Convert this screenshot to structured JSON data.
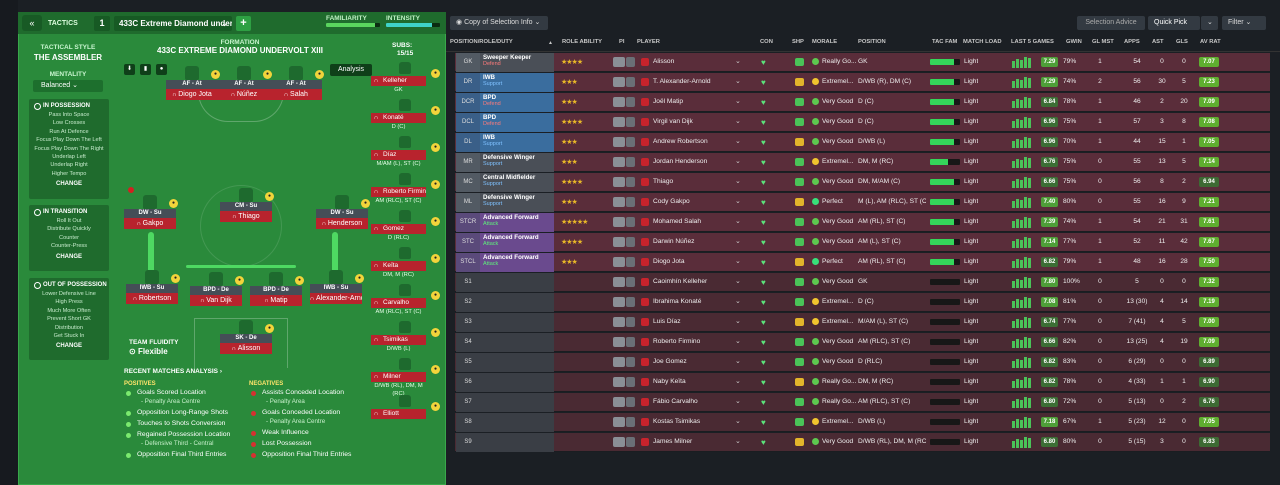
{
  "topbar": {
    "tactics_label": "TACTICS",
    "slot_number": "1",
    "tactic_name": "433C Extreme Diamond under...",
    "familiarity_label": "FAMILIARITY",
    "intensity_label": "INTENSITY",
    "familiarity_level": 0.9,
    "intensity_level": 0.85,
    "view_select": "Copy of Selection Info",
    "selection_advice": "Selection Advice",
    "quick_pick": "Quick Pick",
    "filter": "Filter"
  },
  "left": {
    "tactical_style_label": "TACTICAL STYLE",
    "tactical_style": "THE ASSEMBLER",
    "mentality_label": "MENTALITY",
    "mentality": "Balanced",
    "in_possession": {
      "title": "IN POSSESSION",
      "items": [
        "Pass Into Space",
        "Low Crosses",
        "Run At Defence",
        "Focus Play Down The Left",
        "Focus Play Down The Right",
        "Underlap Left",
        "Underlap Right",
        "Higher Tempo"
      ],
      "change": "CHANGE"
    },
    "in_transition": {
      "title": "IN TRANSITION",
      "items": [
        "Roll It Out",
        "Distribute Quickly",
        "Counter",
        "Counter-Press"
      ],
      "change": "CHANGE"
    },
    "out_possession": {
      "title": "OUT OF POSSESSION",
      "items": [
        "Lower Defensive Line",
        "High Press",
        "Much More Often",
        "Prevent Short GK",
        "Distribution",
        "Get Stuck In"
      ],
      "change": "CHANGE"
    },
    "team_fluidity_label": "TEAM FLUIDITY",
    "team_fluidity": "Flexible"
  },
  "formation": {
    "label": "FORMATION",
    "name": "433C EXTREME DIAMOND UNDERVOLT XIII",
    "analysis_btn": "Analysis",
    "subs_label": "SUBS:",
    "subs_value": "15/15",
    "players": [
      {
        "pos": "AF - At",
        "name": "Diogo Jota"
      },
      {
        "pos": "AF - At",
        "name": "Núñez"
      },
      {
        "pos": "AF - At",
        "name": "Salah"
      },
      {
        "pos": "DW - Su",
        "name": "Gakpo"
      },
      {
        "pos": "CM - Su",
        "name": "Thiago"
      },
      {
        "pos": "DW - Su",
        "name": "Henderson"
      },
      {
        "pos": "IWB - Su",
        "name": "Robertson"
      },
      {
        "pos": "BPD - De",
        "name": "Van Dijk"
      },
      {
        "pos": "BPD - De",
        "name": "Matip"
      },
      {
        "pos": "IWB - Su",
        "name": "Alexander-Arnold"
      },
      {
        "pos": "SK - De",
        "name": "Alisson"
      }
    ],
    "subs": [
      {
        "name": "Kelleher",
        "pos": "GK"
      },
      {
        "name": "Konaté",
        "pos": "D (C)"
      },
      {
        "name": "Díaz",
        "pos": "M/AM (L), ST (C)"
      },
      {
        "name": "Roberto Firmino",
        "pos": "AM (RLC), ST (C)"
      },
      {
        "name": "Gomez",
        "pos": "D (RLC)"
      },
      {
        "name": "Keïta",
        "pos": "DM, M (RC)"
      },
      {
        "name": "Carvalho",
        "pos": "AM (RLC), ST (C)"
      },
      {
        "name": "Tsimikas",
        "pos": "D/WB (L)"
      },
      {
        "name": "Milner",
        "pos": "D/WB (RL), DM, M (RC)"
      },
      {
        "name": "Elliott",
        "pos": ""
      }
    ]
  },
  "analysis": {
    "title": "RECENT MATCHES ANALYSIS",
    "positives_label": "POSITIVES",
    "negatives_label": "NEGATIVES",
    "positives": [
      {
        "t": "Goals Scored Location",
        "s": "- Penalty Area Centre"
      },
      {
        "t": "Opposition Long-Range Shots",
        "s": ""
      },
      {
        "t": "Touches to Shots Conversion",
        "s": ""
      },
      {
        "t": "Regained Possession Location",
        "s": "- Defensive Third - Central"
      },
      {
        "t": "Opposition Final Third Entries",
        "s": ""
      }
    ],
    "negatives": [
      {
        "t": "Assists Conceded Location",
        "s": "- Penalty Area"
      },
      {
        "t": "Goals Conceded Location",
        "s": "- Penalty Area Centre"
      },
      {
        "t": "Weak Influence",
        "s": ""
      },
      {
        "t": "Lost Possession",
        "s": ""
      },
      {
        "t": "Opposition Final Third Entries",
        "s": ""
      }
    ]
  },
  "table": {
    "headers": [
      "POSITION/ROLE/DUTY",
      "ROLE ABILITY",
      "PI",
      "PLAYER",
      "CON",
      "SHP",
      "MORALE",
      "POSITION",
      "TAC FAM",
      "MATCH LOAD",
      "LAST 5 GAMES",
      "GWIN",
      "GL MST",
      "APPS",
      "AST",
      "GLS",
      "AV RAT"
    ],
    "rows": [
      {
        "code": "GK",
        "role": "Sweeper Keeper",
        "duty": "Defend",
        "stars": "★★★★",
        "player": "Alisson",
        "morale": "Really Go...",
        "position": "GK",
        "fam": 0.8,
        "load": "Light",
        "rat": "7.29",
        "gwin": "79%",
        "glmst": "1",
        "apps": "54",
        "ast": "0",
        "gls": "0",
        "av": "7.07"
      },
      {
        "code": "DR",
        "role": "IWB",
        "duty": "Support",
        "stars": "★★★",
        "player": "T. Alexander-Arnold",
        "morale": "Extremel...",
        "position": "D/WB (R), DM (C)",
        "fam": 0.8,
        "load": "Light",
        "rat": "7.29",
        "gwin": "74%",
        "glmst": "2",
        "apps": "56",
        "ast": "30",
        "gls": "5",
        "av": "7.23"
      },
      {
        "code": "DCR",
        "role": "BPD",
        "duty": "Defend",
        "stars": "★★★",
        "player": "Joël Matip",
        "morale": "Very Good",
        "position": "D (C)",
        "fam": 0.8,
        "load": "Light",
        "rat": "6.84",
        "gwin": "78%",
        "glmst": "1",
        "apps": "46",
        "ast": "2",
        "gls": "20",
        "av": "7.09"
      },
      {
        "code": "DCL",
        "role": "BPD",
        "duty": "Defend",
        "stars": "★★★★",
        "player": "Virgil van Dijk",
        "morale": "Very Good",
        "position": "D (C)",
        "fam": 0.8,
        "load": "Light",
        "rat": "6.96",
        "gwin": "75%",
        "glmst": "1",
        "apps": "57",
        "ast": "3",
        "gls": "8",
        "av": "7.08"
      },
      {
        "code": "DL",
        "role": "IWB",
        "duty": "Support",
        "stars": "★★★",
        "player": "Andrew Robertson",
        "morale": "Very Good",
        "position": "D/WB (L)",
        "fam": 0.8,
        "load": "Light",
        "rat": "6.96",
        "gwin": "70%",
        "glmst": "1",
        "apps": "44",
        "ast": "15",
        "gls": "1",
        "av": "7.05"
      },
      {
        "code": "MR",
        "role": "Defensive Winger",
        "duty": "Support",
        "stars": "★★★",
        "player": "Jordan Henderson",
        "morale": "Extremel...",
        "position": "DM, M (RC)",
        "fam": 0.6,
        "load": "Light",
        "rat": "6.76",
        "gwin": "75%",
        "glmst": "0",
        "apps": "55",
        "ast": "13",
        "gls": "5",
        "av": "7.14"
      },
      {
        "code": "MC",
        "role": "Central Midfielder",
        "duty": "Support",
        "stars": "★★★★",
        "player": "Thiago",
        "morale": "Very Good",
        "position": "DM, M/AM (C)",
        "fam": 0.8,
        "load": "Light",
        "rat": "6.66",
        "gwin": "75%",
        "glmst": "0",
        "apps": "56",
        "ast": "8",
        "gls": "2",
        "av": "6.94"
      },
      {
        "code": "ML",
        "role": "Defensive Winger",
        "duty": "Support",
        "stars": "★★★",
        "player": "Cody Gakpo",
        "morale": "Perfect",
        "position": "M (L), AM (RLC), ST (C)",
        "fam": 0.8,
        "load": "Light",
        "rat": "7.40",
        "gwin": "80%",
        "glmst": "0",
        "apps": "55",
        "ast": "16",
        "gls": "9",
        "av": "7.21"
      },
      {
        "code": "STCR",
        "role": "Advanced Forward",
        "duty": "Attack",
        "stars": "★★★★★",
        "player": "Mohamed Salah",
        "morale": "Very Good",
        "position": "AM (RL), ST (C)",
        "fam": 0.8,
        "load": "Light",
        "rat": "7.39",
        "gwin": "74%",
        "glmst": "1",
        "apps": "54",
        "ast": "21",
        "gls": "31",
        "av": "7.61"
      },
      {
        "code": "STC",
        "role": "Advanced Forward",
        "duty": "Attack",
        "stars": "★★★★",
        "player": "Darwin Núñez",
        "morale": "Very Good",
        "position": "AM (L), ST (C)",
        "fam": 0.8,
        "load": "Light",
        "rat": "7.14",
        "gwin": "77%",
        "glmst": "1",
        "apps": "52",
        "ast": "11",
        "gls": "42",
        "av": "7.67"
      },
      {
        "code": "STCL",
        "role": "Advanced Forward",
        "duty": "Attack",
        "stars": "★★★",
        "player": "Diogo Jota",
        "morale": "Perfect",
        "position": "AM (RL), ST (C)",
        "fam": 0.8,
        "load": "Light",
        "rat": "6.82",
        "gwin": "79%",
        "glmst": "1",
        "apps": "48",
        "ast": "16",
        "gls": "28",
        "av": "7.50"
      },
      {
        "code": "S1",
        "role": "",
        "duty": "",
        "stars": "",
        "player": "Caoimhín Kelleher",
        "morale": "Very Good",
        "position": "GK",
        "fam": 0,
        "load": "Light",
        "rat": "7.80",
        "gwin": "100%",
        "glmst": "0",
        "apps": "5",
        "ast": "0",
        "gls": "0",
        "av": "7.32"
      },
      {
        "code": "S2",
        "role": "",
        "duty": "",
        "stars": "",
        "player": "Ibrahima Konaté",
        "morale": "Extremel...",
        "position": "D (C)",
        "fam": 0,
        "load": "Light",
        "rat": "7.08",
        "gwin": "81%",
        "glmst": "0",
        "apps": "13 (30)",
        "ast": "4",
        "gls": "14",
        "av": "7.19"
      },
      {
        "code": "S3",
        "role": "",
        "duty": "",
        "stars": "",
        "player": "Luis Díaz",
        "morale": "Extremel...",
        "position": "M/AM (L), ST (C)",
        "fam": 0,
        "load": "Light",
        "rat": "6.74",
        "gwin": "77%",
        "glmst": "0",
        "apps": "7 (41)",
        "ast": "4",
        "gls": "5",
        "av": "7.00"
      },
      {
        "code": "S4",
        "role": "",
        "duty": "",
        "stars": "",
        "player": "Roberto Firmino",
        "morale": "Very Good",
        "position": "AM (RLC), ST (C)",
        "fam": 0,
        "load": "Light",
        "rat": "6.66",
        "gwin": "82%",
        "glmst": "0",
        "apps": "13 (25)",
        "ast": "4",
        "gls": "19",
        "av": "7.09"
      },
      {
        "code": "S5",
        "role": "",
        "duty": "",
        "stars": "",
        "player": "Joe Gomez",
        "morale": "Very Good",
        "position": "D (RLC)",
        "fam": 0,
        "load": "Light",
        "rat": "6.82",
        "gwin": "83%",
        "glmst": "0",
        "apps": "6 (29)",
        "ast": "0",
        "gls": "0",
        "av": "6.89"
      },
      {
        "code": "S6",
        "role": "",
        "duty": "",
        "stars": "",
        "player": "Naby Keïta",
        "morale": "Really Go...",
        "position": "DM, M (RC)",
        "fam": 0,
        "load": "Light",
        "rat": "6.82",
        "gwin": "78%",
        "glmst": "0",
        "apps": "4 (33)",
        "ast": "1",
        "gls": "1",
        "av": "6.90"
      },
      {
        "code": "S7",
        "role": "",
        "duty": "",
        "stars": "",
        "player": "Fábio Carvalho",
        "morale": "Really Go...",
        "position": "AM (RLC), ST (C)",
        "fam": 0,
        "load": "Light",
        "rat": "6.80",
        "gwin": "72%",
        "glmst": "0",
        "apps": "5 (13)",
        "ast": "0",
        "gls": "2",
        "av": "6.76"
      },
      {
        "code": "S8",
        "role": "",
        "duty": "",
        "stars": "",
        "player": "Kostas Tsimikas",
        "morale": "Extremel...",
        "position": "D/WB (L)",
        "fam": 0,
        "load": "Light",
        "rat": "7.18",
        "gwin": "67%",
        "glmst": "1",
        "apps": "5 (23)",
        "ast": "12",
        "gls": "0",
        "av": "7.05"
      },
      {
        "code": "S9",
        "role": "",
        "duty": "",
        "stars": "",
        "player": "James Milner",
        "morale": "Very Good",
        "position": "D/WB (RL), DM, M (RC)",
        "fam": 0,
        "load": "Light",
        "rat": "6.80",
        "gwin": "80%",
        "glmst": "0",
        "apps": "5 (15)",
        "ast": "3",
        "gls": "0",
        "av": "6.83"
      }
    ]
  },
  "colors": {
    "accent_green": "#2a8a3b",
    "player_red": "#b8232d",
    "row_start": "#5a2d3a",
    "row_sub": "#4a2a33"
  }
}
